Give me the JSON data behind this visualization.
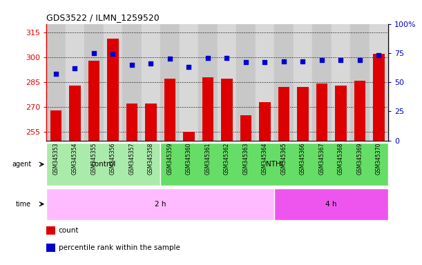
{
  "title": "GDS3522 / ILMN_1259520",
  "samples": [
    "GSM345353",
    "GSM345354",
    "GSM345355",
    "GSM345356",
    "GSM345357",
    "GSM345358",
    "GSM345359",
    "GSM345360",
    "GSM345361",
    "GSM345362",
    "GSM345363",
    "GSM345364",
    "GSM345365",
    "GSM345366",
    "GSM345367",
    "GSM345368",
    "GSM345369",
    "GSM345370"
  ],
  "counts": [
    268,
    283,
    298,
    311,
    272,
    272,
    287,
    255,
    288,
    287,
    265,
    273,
    282,
    282,
    284,
    283,
    286,
    302
  ],
  "percentile_ranks": [
    57,
    62,
    75,
    74,
    65,
    66,
    70,
    63,
    71,
    71,
    67,
    67,
    68,
    68,
    69,
    69,
    69,
    73
  ],
  "ylim_left": [
    250,
    320
  ],
  "yticks_left": [
    255,
    270,
    285,
    300,
    315
  ],
  "ylim_right": [
    0,
    100
  ],
  "yticks_right": [
    0,
    25,
    50,
    75,
    100
  ],
  "ytick_labels_right": [
    "0",
    "25",
    "50",
    "75",
    "100%"
  ],
  "bar_color": "#dd0000",
  "scatter_color": "#0000cc",
  "agent_control_n": 6,
  "agent_control_label": "control",
  "agent_nthi_label": "NTHi",
  "time_2h_n": 12,
  "time_2h_label": "2 h",
  "time_4h_label": "4 h",
  "agent_control_color": "#aaeaaa",
  "agent_nthi_color": "#66dd66",
  "time_2h_color": "#ffbbff",
  "time_4h_color": "#ee55ee",
  "legend_count_label": "count",
  "legend_pct_label": "percentile rank within the sample",
  "bg_color": "#ffffff",
  "tick_label_bg_odd": "#cccccc",
  "tick_label_bg_even": "#dddddd"
}
